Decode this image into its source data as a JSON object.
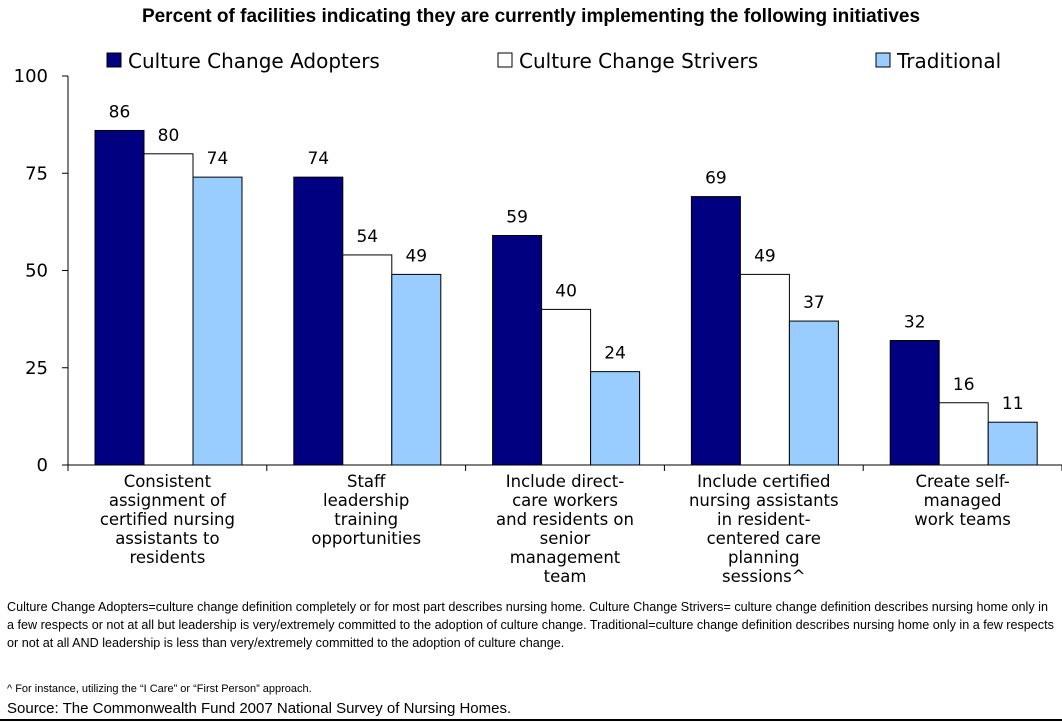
{
  "chart_data": {
    "type": "bar",
    "title": "Percent of facilities indicating they are currently implementing the following initiatives",
    "categories": [
      "Consistent assignment of certified nursing assistants to residents",
      "Staff leadership training opportunities",
      "Include direct-care workers and residents on senior management team",
      "Include certified nursing assistants in resident-centered care planning sessions^",
      "Create self-managed work teams"
    ],
    "category_lines": [
      [
        "Consistent",
        "assignment of",
        "certified nursing",
        "assistants to",
        "residents"
      ],
      [
        "Staff",
        "leadership",
        "training",
        "opportunities"
      ],
      [
        "Include direct-",
        "care workers",
        "and residents on",
        "senior",
        "management",
        "team"
      ],
      [
        "Include certified",
        "nursing assistants",
        "in resident-",
        "centered care",
        "planning",
        "sessions^"
      ],
      [
        "Create self-",
        "managed",
        "work teams"
      ]
    ],
    "series": [
      {
        "name": "Culture Change Adopters",
        "values": [
          86,
          74,
          59,
          69,
          32
        ],
        "color": "#000080"
      },
      {
        "name": "Culture Change Strivers",
        "values": [
          80,
          54,
          40,
          49,
          16
        ],
        "color": "#ffffff"
      },
      {
        "name": "Traditional",
        "values": [
          74,
          49,
          24,
          37,
          11
        ],
        "color": "#99ccff"
      }
    ],
    "ylim": [
      0,
      100
    ],
    "yticks": [
      0,
      25,
      50,
      75,
      100
    ],
    "xlabel": "",
    "ylabel": "",
    "grid": false,
    "legend_position": "top"
  },
  "notes": {
    "definitions": "Culture Change Adopters=culture change definition completely or for most part describes nursing home. Culture Change Strivers= culture change definition describes nursing home only in a few respects or not at all but leadership is very/extremely committed to the adoption of culture change.  Traditional=culture change definition describes nursing home only in a few respects or not at all AND leadership is less than very/extremely committed to the adoption of culture change.",
    "footnote": "^ For instance, utilizing the “I Care” or “First Person” approach.",
    "source": "Source: The Commonwealth Fund 2007 National Survey of Nursing Homes."
  }
}
